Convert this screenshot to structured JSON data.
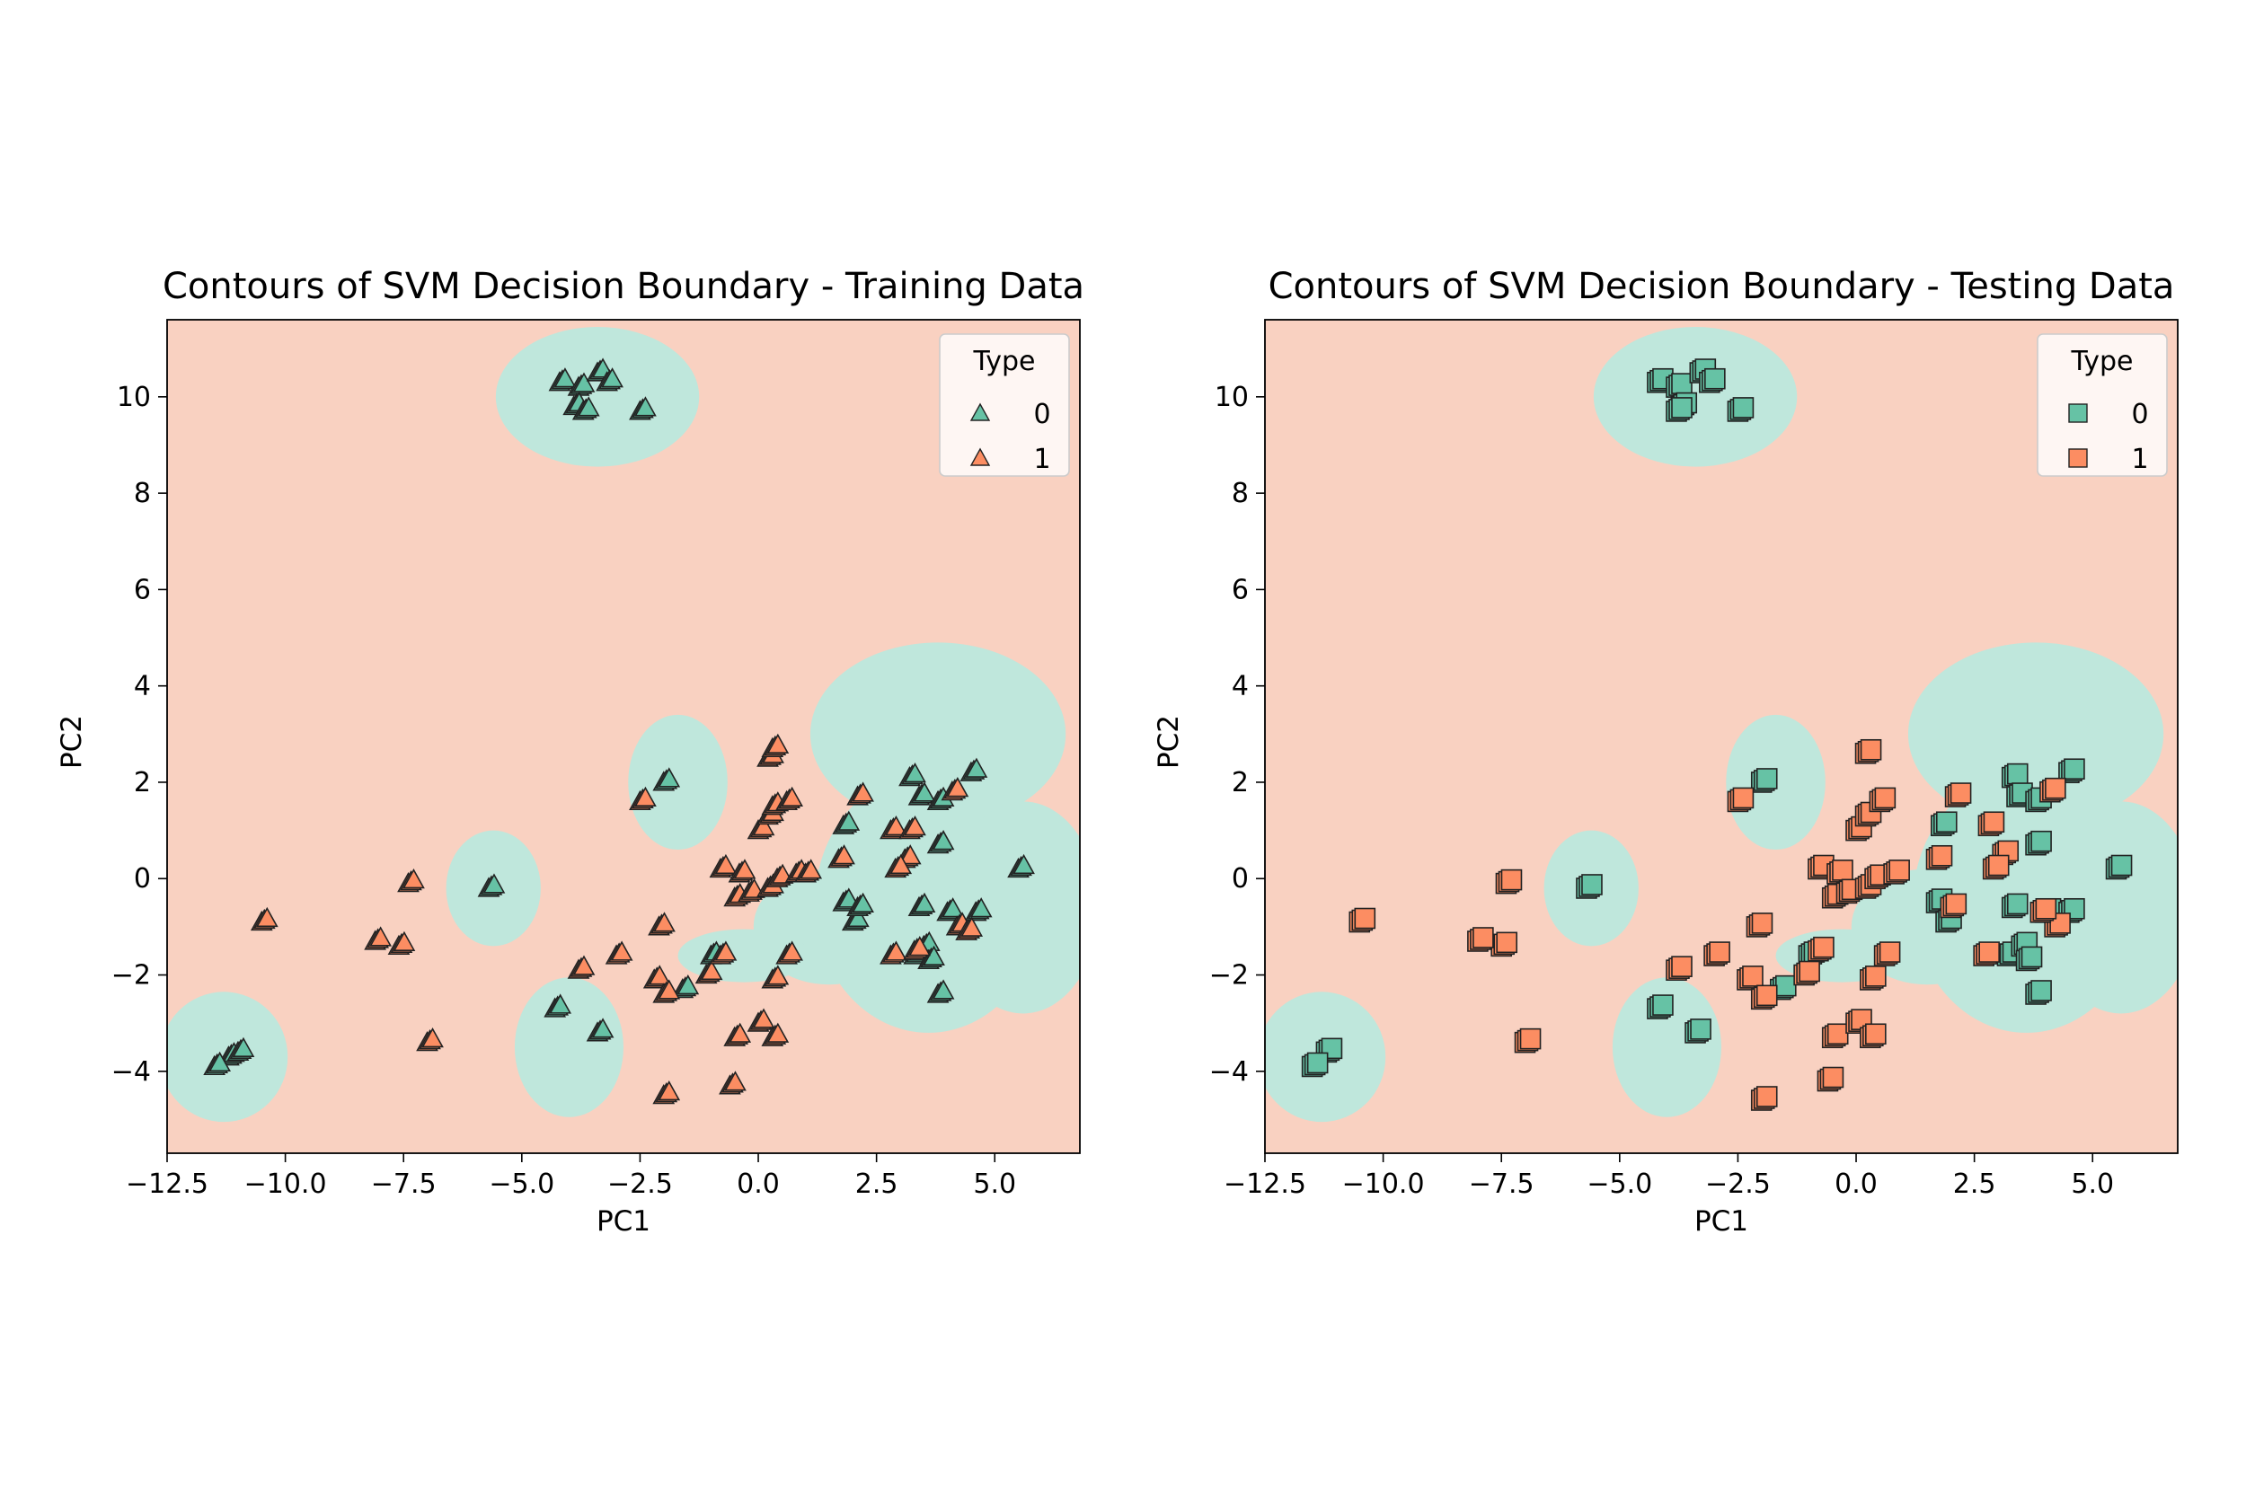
{
  "chart_data": [
    {
      "type": "scatter",
      "title": "Contours of SVM Decision Boundary - Training Data",
      "xlabel": "PC1",
      "ylabel": "PC2",
      "xlim": [
        -12.5,
        6.8
      ],
      "ylim": [
        -5.7,
        11.6
      ],
      "xticks": [
        -12.5,
        -10.0,
        -7.5,
        -5.0,
        -2.5,
        0.0,
        2.5,
        5.0
      ],
      "xtick_labels": [
        "−12.5",
        "−10.0",
        "−7.5",
        "−5.0",
        "−2.5",
        "0.0",
        "2.5",
        "5.0"
      ],
      "yticks": [
        -4,
        -2,
        0,
        2,
        4,
        6,
        8,
        10
      ],
      "ytick_labels": [
        "−4",
        "−2",
        "0",
        "2",
        "4",
        "6",
        "8",
        "10"
      ],
      "marker": "triangle",
      "legend": {
        "title": "Type",
        "entries": [
          "0",
          "1"
        ],
        "placement": "top-right"
      },
      "colors": {
        "0": "#66c2a5",
        "1": "#fc8d62",
        "region_0": "#bfe7dc",
        "region_1": "#f9d1c1"
      },
      "series": [
        {
          "name": "0",
          "points": [
            [
              -4.2,
              10.3
            ],
            [
              -3.8,
              10.2
            ],
            [
              -3.4,
              10.5
            ],
            [
              -3.2,
              10.3
            ],
            [
              -3.9,
              9.8
            ],
            [
              -3.7,
              9.7
            ],
            [
              -2.5,
              9.7
            ],
            [
              -2.0,
              2.0
            ],
            [
              -5.7,
              -0.2
            ],
            [
              -11.2,
              -3.7
            ],
            [
              -11.5,
              -3.9
            ],
            [
              -11.0,
              -3.6
            ],
            [
              -4.3,
              -2.7
            ],
            [
              -3.4,
              -3.2
            ],
            [
              -1.6,
              -2.3
            ],
            [
              -1.0,
              -1.6
            ],
            [
              1.8,
              1.1
            ],
            [
              1.8,
              -0.5
            ],
            [
              2.0,
              -0.9
            ],
            [
              2.1,
              -0.6
            ],
            [
              3.2,
              2.1
            ],
            [
              3.4,
              1.7
            ],
            [
              3.8,
              1.6
            ],
            [
              4.5,
              2.2
            ],
            [
              3.8,
              0.7
            ],
            [
              3.4,
              -0.6
            ],
            [
              3.3,
              -1.6
            ],
            [
              3.5,
              -1.4
            ],
            [
              3.6,
              -1.7
            ],
            [
              3.8,
              -2.4
            ],
            [
              4.0,
              -0.7
            ],
            [
              4.6,
              -0.7
            ],
            [
              5.5,
              0.2
            ]
          ]
        },
        {
          "name": "1",
          "points": [
            [
              -10.5,
              -0.9
            ],
            [
              -7.4,
              -0.1
            ],
            [
              -7.6,
              -1.4
            ],
            [
              -8.1,
              -1.3
            ],
            [
              -7.0,
              -3.4
            ],
            [
              -2.5,
              1.6
            ],
            [
              -2.1,
              -1.0
            ],
            [
              -3.8,
              -1.9
            ],
            [
              -3.0,
              -1.6
            ],
            [
              -2.2,
              -2.1
            ],
            [
              -2.0,
              -2.4
            ],
            [
              -1.1,
              -2.0
            ],
            [
              -0.8,
              -1.6
            ],
            [
              -0.5,
              -3.3
            ],
            [
              -0.6,
              -4.3
            ],
            [
              -2.0,
              -4.5
            ],
            [
              -0.8,
              0.2
            ],
            [
              -0.4,
              0.1
            ],
            [
              -0.5,
              -0.4
            ],
            [
              -0.2,
              -0.3
            ],
            [
              0.2,
              -0.2
            ],
            [
              0.4,
              0.0
            ],
            [
              0.8,
              0.1
            ],
            [
              1.0,
              0.1
            ],
            [
              0.0,
              1.0
            ],
            [
              0.2,
              1.3
            ],
            [
              0.3,
              1.5
            ],
            [
              0.6,
              1.6
            ],
            [
              0.2,
              2.5
            ],
            [
              0.3,
              2.7
            ],
            [
              2.1,
              1.7
            ],
            [
              1.7,
              0.4
            ],
            [
              2.8,
              1.0
            ],
            [
              3.2,
              1.0
            ],
            [
              3.1,
              0.4
            ],
            [
              2.9,
              0.2
            ],
            [
              2.8,
              -1.6
            ],
            [
              3.3,
              -1.5
            ],
            [
              4.2,
              -1.0
            ],
            [
              4.4,
              -1.1
            ],
            [
              4.1,
              1.8
            ],
            [
              0.0,
              -3.0
            ],
            [
              0.3,
              -3.3
            ],
            [
              0.3,
              -2.1
            ],
            [
              0.6,
              -1.6
            ]
          ]
        }
      ]
    },
    {
      "type": "scatter",
      "title": "Contours of SVM Decision Boundary - Testing Data",
      "xlabel": "PC1",
      "ylabel": "PC2",
      "xlim": [
        -12.5,
        6.8
      ],
      "ylim": [
        -5.7,
        11.6
      ],
      "xticks": [
        -12.5,
        -10.0,
        -7.5,
        -5.0,
        -2.5,
        0.0,
        2.5,
        5.0
      ],
      "xtick_labels": [
        "−12.5",
        "−10.0",
        "−7.5",
        "−5.0",
        "−2.5",
        "0.0",
        "2.5",
        "5.0"
      ],
      "yticks": [
        -4,
        -2,
        0,
        2,
        4,
        6,
        8,
        10
      ],
      "ytick_labels": [
        "−4",
        "−2",
        "0",
        "2",
        "4",
        "6",
        "8",
        "10"
      ],
      "marker": "square",
      "legend": {
        "title": "Type",
        "entries": [
          "0",
          "1"
        ],
        "placement": "top-right"
      },
      "colors": {
        "0": "#66c2a5",
        "1": "#fc8d62",
        "region_0": "#bfe7dc",
        "region_1": "#f9d1c1"
      },
      "series": [
        {
          "name": "0",
          "points": [
            [
              -4.2,
              10.3
            ],
            [
              -3.8,
              10.2
            ],
            [
              -3.3,
              10.5
            ],
            [
              -3.1,
              10.3
            ],
            [
              -3.7,
              9.8
            ],
            [
              -3.8,
              9.7
            ],
            [
              -2.5,
              9.7
            ],
            [
              -2.0,
              2.0
            ],
            [
              -5.7,
              -0.2
            ],
            [
              -11.2,
              -3.6
            ],
            [
              -11.5,
              -3.9
            ],
            [
              -4.2,
              -2.7
            ],
            [
              -3.4,
              -3.2
            ],
            [
              -1.6,
              -2.3
            ],
            [
              -1.0,
              -1.6
            ],
            [
              1.8,
              1.1
            ],
            [
              1.7,
              -0.5
            ],
            [
              1.9,
              -0.9
            ],
            [
              3.3,
              2.1
            ],
            [
              3.4,
              1.7
            ],
            [
              3.8,
              1.6
            ],
            [
              4.5,
              2.2
            ],
            [
              3.8,
              0.7
            ],
            [
              3.3,
              -0.6
            ],
            [
              3.2,
              -1.6
            ],
            [
              3.5,
              -1.4
            ],
            [
              3.6,
              -1.7
            ],
            [
              3.8,
              -2.4
            ],
            [
              4.0,
              -0.7
            ],
            [
              4.5,
              -0.7
            ],
            [
              5.5,
              0.2
            ]
          ]
        },
        {
          "name": "1",
          "points": [
            [
              -10.5,
              -0.9
            ],
            [
              -7.4,
              -0.1
            ],
            [
              -7.5,
              -1.4
            ],
            [
              -8.0,
              -1.3
            ],
            [
              -7.0,
              -3.4
            ],
            [
              -2.5,
              1.6
            ],
            [
              -2.1,
              -1.0
            ],
            [
              -3.8,
              -1.9
            ],
            [
              -3.0,
              -1.6
            ],
            [
              -2.3,
              -2.1
            ],
            [
              -2.0,
              -2.5
            ],
            [
              -1.1,
              -2.0
            ],
            [
              -0.8,
              -1.5
            ],
            [
              -0.5,
              -3.3
            ],
            [
              -0.6,
              -4.2
            ],
            [
              -2.0,
              -4.6
            ],
            [
              -0.8,
              0.2
            ],
            [
              -0.4,
              0.1
            ],
            [
              -0.5,
              -0.4
            ],
            [
              -0.2,
              -0.3
            ],
            [
              0.2,
              -0.2
            ],
            [
              0.4,
              0.0
            ],
            [
              0.8,
              0.1
            ],
            [
              0.0,
              1.0
            ],
            [
              0.2,
              1.3
            ],
            [
              0.5,
              1.6
            ],
            [
              0.2,
              2.6
            ],
            [
              2.1,
              1.7
            ],
            [
              1.7,
              0.4
            ],
            [
              2.8,
              1.1
            ],
            [
              3.1,
              0.5
            ],
            [
              2.9,
              0.2
            ],
            [
              2.7,
              -1.6
            ],
            [
              4.2,
              -1.0
            ],
            [
              4.1,
              1.8
            ],
            [
              0.0,
              -3.0
            ],
            [
              0.3,
              -3.3
            ],
            [
              0.3,
              -2.1
            ],
            [
              0.6,
              -1.6
            ],
            [
              2.0,
              -0.6
            ],
            [
              3.9,
              -0.7
            ]
          ]
        }
      ]
    }
  ]
}
